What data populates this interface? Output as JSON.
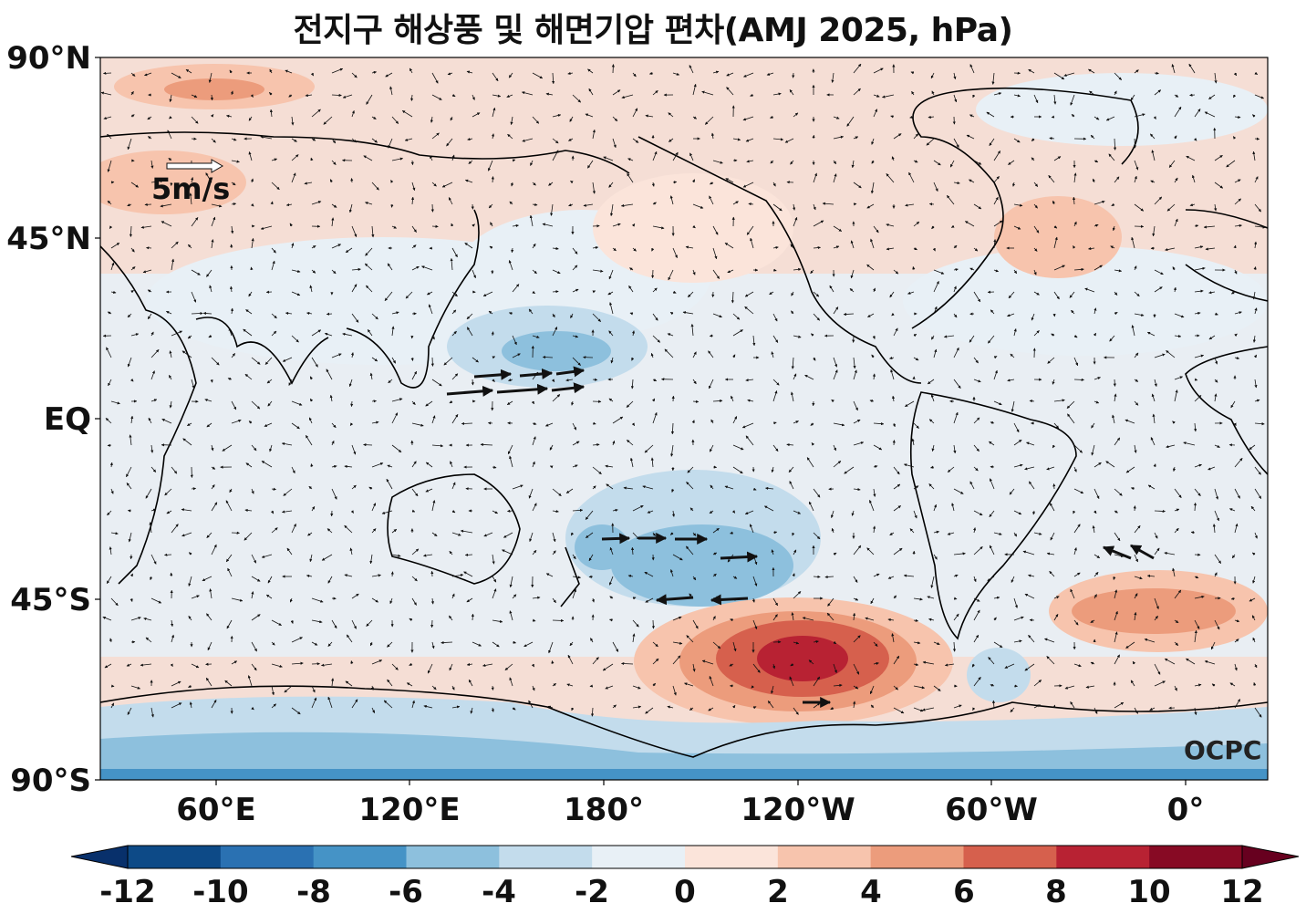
{
  "title": "전지구 해상풍 및 해면기압 편차(AMJ 2025, hPa)",
  "map": {
    "projection": "Plate Carrée, centered on 150°W",
    "lon_range": [
      30,
      390
    ],
    "lat_range": [
      -90,
      90
    ],
    "y_ticks": [
      "90°N",
      "45°N",
      "EQ",
      "45°S",
      "90°S"
    ],
    "x_ticks": [
      "60°E",
      "120°E",
      "180°",
      "120°W",
      "60°W",
      "0°"
    ],
    "background_color": "#f5ded5",
    "coastline_color": "#000000"
  },
  "reference_vector": {
    "label": "5m/s"
  },
  "logo_text": "OCPC",
  "colorbar": {
    "ticks": [
      "-12",
      "-10",
      "-8",
      "-6",
      "-4",
      "-2",
      "0",
      "2",
      "4",
      "6",
      "8",
      "10",
      "12"
    ],
    "colors": [
      "#0d4a87",
      "#2a71b2",
      "#4593c6",
      "#8dc0dd",
      "#c3dcec",
      "#e8f0f6",
      "#fbe4da",
      "#f7c4ad",
      "#ec9c7c",
      "#d6604d",
      "#b82233",
      "#870a24"
    ],
    "extend": "both"
  },
  "anomaly_regions": [
    {
      "name": "north-pacific-subtropical-low",
      "color": "#c3dcec"
    },
    {
      "name": "south-pacific-low",
      "color": "#8dc0dd"
    },
    {
      "name": "amundsen-sea-high",
      "color": "#b82233"
    },
    {
      "name": "south-atlantic-high",
      "color": "#ec9c7c"
    },
    {
      "name": "antarctic-low",
      "color": "#4593c6"
    }
  ]
}
